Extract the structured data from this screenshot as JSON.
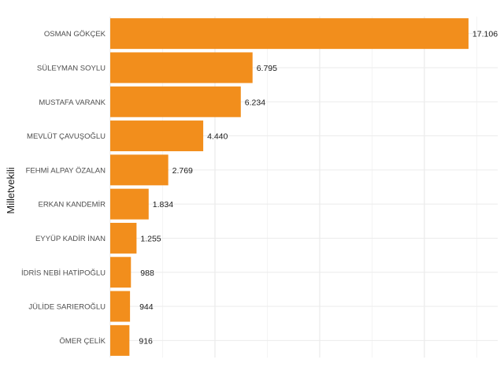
{
  "chart_data": {
    "type": "bar",
    "orientation": "horizontal",
    "ylabel": "Milletvekili",
    "xlabel": "",
    "xlim": [
      0,
      18500
    ],
    "bar_color": "#F28E1C",
    "grid": true,
    "categories": [
      "OSMAN GÖKÇEK",
      "SÜLEYMAN SOYLU",
      "MUSTAFA VARANK",
      "MEVLÜT ÇAVUŞOĞLU",
      "FEHMİ ALPAY ÖZALAN",
      "ERKAN KANDEMİR",
      "EYYÜP KADİR İNAN",
      "İDRİS NEBİ HATİPOĞLU",
      "JÜLİDE SARIEROĞLU",
      "ÖMER ÇELİK"
    ],
    "values": [
      17106,
      6795,
      6234,
      4440,
      2769,
      1834,
      1255,
      988,
      944,
      916
    ],
    "value_labels": [
      "17.106",
      "6.795",
      "6.234",
      "4.440",
      "2.769",
      "1.834",
      "1.255",
      "988",
      "944",
      "916"
    ]
  }
}
